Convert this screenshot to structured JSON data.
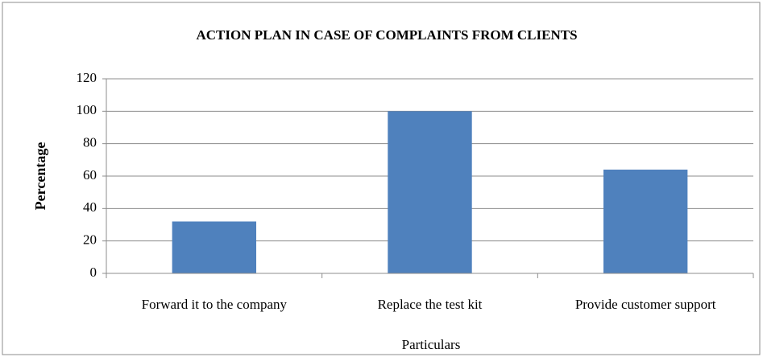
{
  "chart_data": {
    "type": "bar",
    "title": "ACTION PLAN IN CASE OF COMPLAINTS FROM CLIENTS",
    "x_label": "Particulars",
    "y_label": "Percentage",
    "categories": [
      "Forward it to the company",
      "Replace the test kit",
      "Provide customer support"
    ],
    "values": [
      32,
      100,
      64
    ],
    "color": "#4f81bd",
    "ylim": [
      0,
      120
    ],
    "yticks": [
      0,
      20,
      40,
      60,
      80,
      100,
      120
    ],
    "grid": true
  }
}
